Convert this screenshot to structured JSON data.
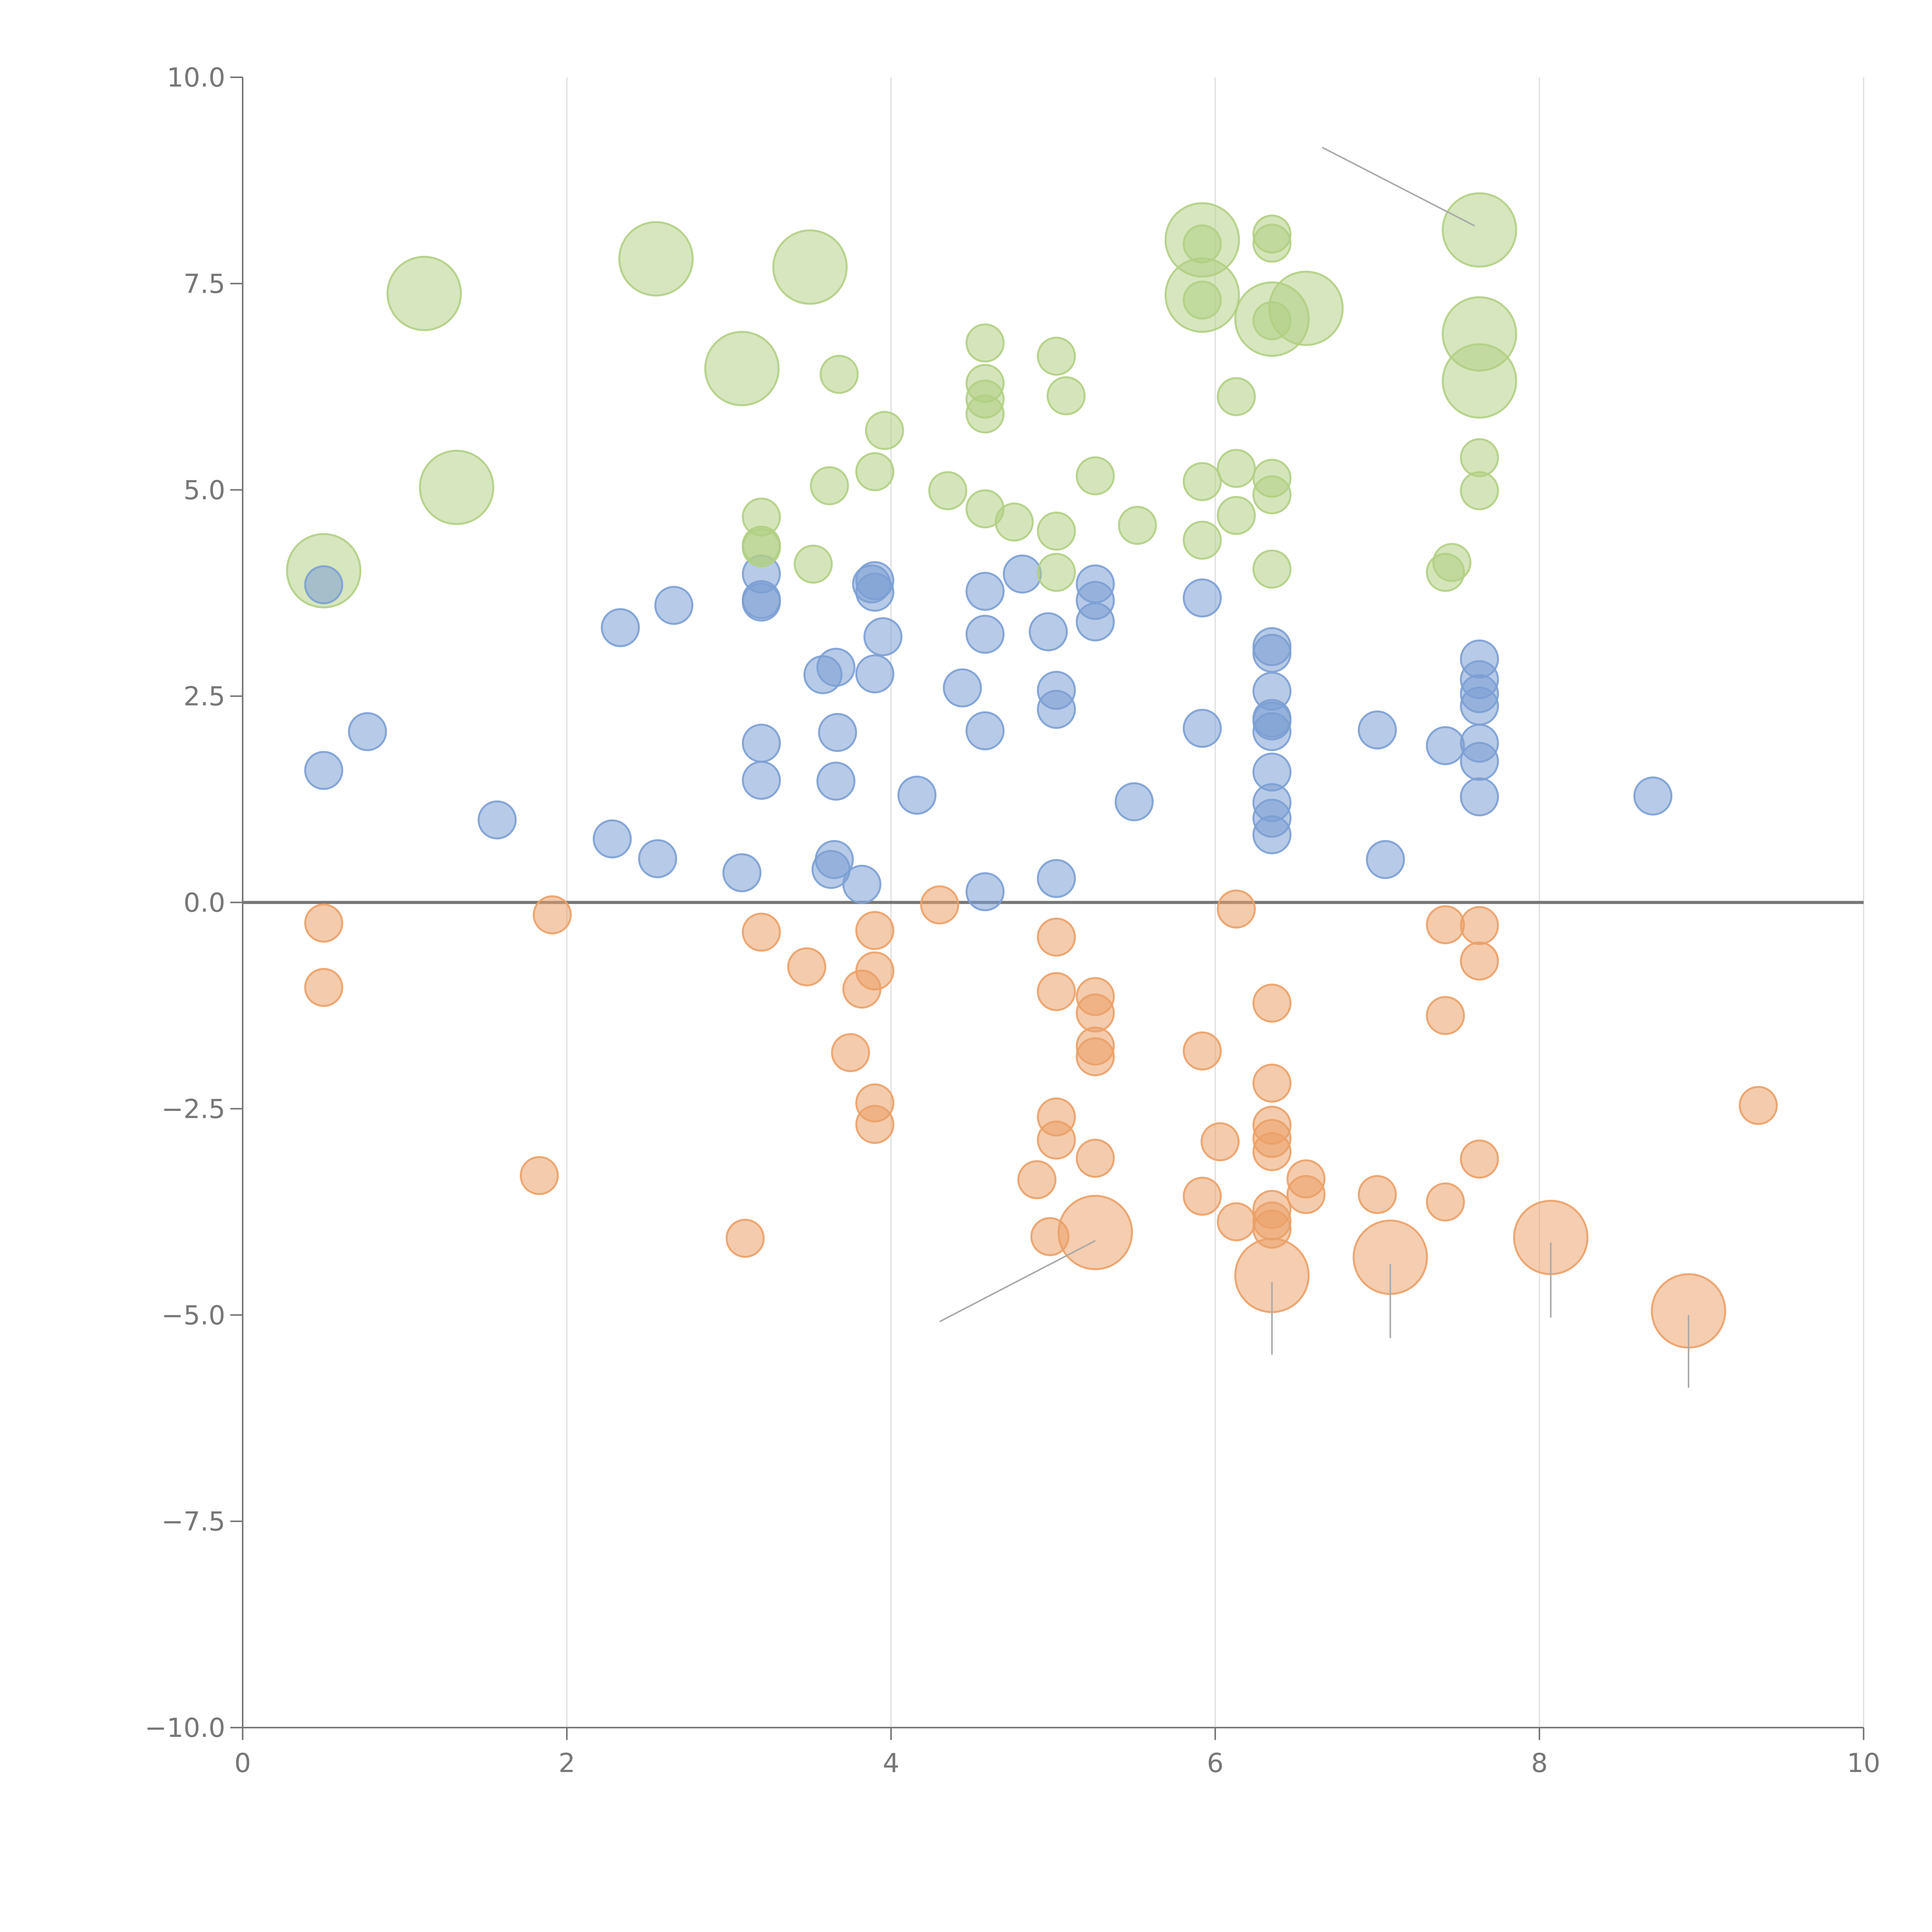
{
  "chart_data": {
    "type": "scatter",
    "title": "",
    "xlabel": "",
    "ylabel": "",
    "xlim": [
      0,
      10
    ],
    "ylim": [
      -10,
      10
    ],
    "x_ticks": [
      0,
      2,
      4,
      6,
      8,
      10
    ],
    "y_ticks": [
      -10,
      -7.5,
      -5,
      -2.5,
      0,
      2.5,
      5,
      7.5,
      10
    ],
    "x_tick_labels": [
      "0",
      "2",
      "4",
      "6",
      "8",
      "10"
    ],
    "y_tick_labels": [
      "−10.0",
      "−7.5",
      "−5.0",
      "−2.5",
      "0.0",
      "2.5",
      "5.0",
      "7.5",
      "10.0"
    ],
    "vertical_gridlines": true,
    "horizontal_gridlines": false,
    "zero_line": true,
    "colors": {
      "blue": "#7b9fd4",
      "orange": "#eba067",
      "green": "#b0cf83"
    },
    "series": [
      {
        "name": "blue",
        "color": "#7b9fd4",
        "points": [
          [
            0.5,
            3.85
          ],
          [
            0.5,
            1.6
          ],
          [
            0.77,
            2.07
          ],
          [
            1.57,
            1.0
          ],
          [
            2.28,
            0.77
          ],
          [
            2.33,
            3.33
          ],
          [
            2.56,
            0.53
          ],
          [
            2.66,
            3.6
          ],
          [
            3.08,
            0.36
          ],
          [
            3.2,
            3.98
          ],
          [
            3.2,
            3.67
          ],
          [
            3.2,
            3.64
          ],
          [
            3.2,
            1.93
          ],
          [
            3.2,
            1.48
          ],
          [
            3.58,
            2.76
          ],
          [
            3.63,
            0.4
          ],
          [
            3.65,
            0.52
          ],
          [
            3.66,
            2.85
          ],
          [
            3.67,
            2.06
          ],
          [
            3.66,
            1.47
          ],
          [
            3.82,
            0.22
          ],
          [
            3.88,
            3.86
          ],
          [
            3.9,
            3.9
          ],
          [
            3.9,
            3.76
          ],
          [
            3.9,
            2.77
          ],
          [
            3.95,
            3.22
          ],
          [
            4.16,
            1.3
          ],
          [
            4.44,
            2.6
          ],
          [
            4.58,
            3.77
          ],
          [
            4.58,
            3.25
          ],
          [
            4.58,
            2.08
          ],
          [
            4.58,
            0.13
          ],
          [
            4.81,
            3.98
          ],
          [
            4.97,
            3.28
          ],
          [
            5.02,
            2.57
          ],
          [
            5.02,
            2.34
          ],
          [
            5.02,
            0.29
          ],
          [
            5.26,
            3.86
          ],
          [
            5.26,
            3.66
          ],
          [
            5.26,
            3.4
          ],
          [
            5.5,
            1.22
          ],
          [
            5.92,
            3.69
          ],
          [
            5.92,
            2.11
          ],
          [
            6.35,
            3.1
          ],
          [
            6.35,
            3.02
          ],
          [
            6.35,
            2.56
          ],
          [
            6.35,
            2.23
          ],
          [
            6.35,
            2.2
          ],
          [
            6.35,
            2.07
          ],
          [
            6.35,
            1.58
          ],
          [
            6.35,
            1.21
          ],
          [
            6.35,
            1.02
          ],
          [
            6.35,
            0.82
          ],
          [
            7.0,
            2.09
          ],
          [
            7.05,
            0.52
          ],
          [
            7.42,
            1.9
          ],
          [
            7.63,
            2.95
          ],
          [
            7.63,
            2.7
          ],
          [
            7.63,
            2.53
          ],
          [
            7.63,
            2.38
          ],
          [
            7.63,
            1.93
          ],
          [
            7.63,
            1.71
          ],
          [
            7.63,
            1.28
          ],
          [
            8.7,
            1.29
          ]
        ]
      },
      {
        "name": "orange",
        "color": "#eba067",
        "points": [
          [
            0.5,
            -0.25
          ],
          [
            0.5,
            -1.03
          ],
          [
            1.83,
            -3.31
          ],
          [
            1.91,
            -0.15
          ],
          [
            3.1,
            -4.07
          ],
          [
            3.2,
            -0.36
          ],
          [
            3.48,
            -0.78
          ],
          [
            3.75,
            -1.82
          ],
          [
            3.82,
            -1.05
          ],
          [
            3.9,
            -0.34
          ],
          [
            3.9,
            -0.83
          ],
          [
            3.9,
            -2.43
          ],
          [
            3.9,
            -2.69
          ],
          [
            4.3,
            -0.03
          ],
          [
            4.9,
            -3.36
          ],
          [
            4.98,
            -4.05
          ],
          [
            5.02,
            -0.42
          ],
          [
            5.02,
            -1.08
          ],
          [
            5.02,
            -2.6
          ],
          [
            5.02,
            -2.88
          ],
          [
            5.26,
            -1.14
          ],
          [
            5.26,
            -1.34
          ],
          [
            5.26,
            -1.74
          ],
          [
            5.26,
            -1.87
          ],
          [
            5.26,
            -3.1
          ],
          [
            5.92,
            -1.8
          ],
          [
            5.92,
            -3.56
          ],
          [
            6.03,
            -2.9
          ],
          [
            6.13,
            -0.08
          ],
          [
            6.13,
            -3.87
          ],
          [
            6.35,
            -1.22
          ],
          [
            6.35,
            -2.19
          ],
          [
            6.35,
            -2.7
          ],
          [
            6.35,
            -2.86
          ],
          [
            6.35,
            -3.02
          ],
          [
            6.35,
            -3.72
          ],
          [
            6.35,
            -3.86
          ],
          [
            6.35,
            -3.96
          ],
          [
            6.56,
            -3.35
          ],
          [
            6.56,
            -3.54
          ],
          [
            7.0,
            -3.54
          ],
          [
            7.42,
            -0.27
          ],
          [
            7.42,
            -1.37
          ],
          [
            7.42,
            -3.63
          ],
          [
            7.63,
            -0.28
          ],
          [
            7.63,
            -0.71
          ],
          [
            7.63,
            -3.11
          ],
          [
            9.35,
            -2.46
          ]
        ]
      },
      {
        "name": "green",
        "color": "#b0cf83",
        "points": [
          [
            3.2,
            4.67
          ],
          [
            3.2,
            4.33
          ],
          [
            3.2,
            4.3
          ],
          [
            3.52,
            4.1
          ],
          [
            3.62,
            5.05
          ],
          [
            3.68,
            6.4
          ],
          [
            3.9,
            5.22
          ],
          [
            3.96,
            5.72
          ],
          [
            4.35,
            4.99
          ],
          [
            4.58,
            6.78
          ],
          [
            4.58,
            6.29
          ],
          [
            4.58,
            6.1
          ],
          [
            4.58,
            5.92
          ],
          [
            4.58,
            4.77
          ],
          [
            4.76,
            4.61
          ],
          [
            5.02,
            6.62
          ],
          [
            5.02,
            4.5
          ],
          [
            5.02,
            4.0
          ],
          [
            5.08,
            6.14
          ],
          [
            5.26,
            5.17
          ],
          [
            5.52,
            4.57
          ],
          [
            5.92,
            7.98
          ],
          [
            5.92,
            7.3
          ],
          [
            5.92,
            5.1
          ],
          [
            5.92,
            4.39
          ],
          [
            6.13,
            6.13
          ],
          [
            6.13,
            5.26
          ],
          [
            6.13,
            4.69
          ],
          [
            6.35,
            8.1
          ],
          [
            6.35,
            7.99
          ],
          [
            6.35,
            7.05
          ],
          [
            6.35,
            5.14
          ],
          [
            6.35,
            4.94
          ],
          [
            6.35,
            4.04
          ],
          [
            7.42,
            4.0
          ],
          [
            7.46,
            4.12
          ],
          [
            7.63,
            5.39
          ],
          [
            7.63,
            4.99
          ]
        ]
      }
    ],
    "large_bubbles": [
      {
        "series": "green",
        "x": 0.5,
        "y": 4.02
      },
      {
        "series": "green",
        "x": 1.12,
        "y": 7.38
      },
      {
        "series": "green",
        "x": 1.32,
        "y": 5.03
      },
      {
        "series": "green",
        "x": 2.55,
        "y": 7.8
      },
      {
        "series": "green",
        "x": 3.08,
        "y": 6.47
      },
      {
        "series": "green",
        "x": 3.5,
        "y": 7.7
      },
      {
        "series": "green",
        "x": 5.92,
        "y": 8.03
      },
      {
        "series": "green",
        "x": 5.92,
        "y": 7.36
      },
      {
        "series": "green",
        "x": 6.35,
        "y": 7.07
      },
      {
        "series": "green",
        "x": 6.56,
        "y": 7.2
      },
      {
        "series": "green",
        "x": 7.63,
        "y": 8.15
      },
      {
        "series": "green",
        "x": 7.63,
        "y": 6.89
      },
      {
        "series": "green",
        "x": 7.63,
        "y": 6.32
      },
      {
        "series": "orange",
        "x": 5.26,
        "y": -4.0
      },
      {
        "series": "orange",
        "x": 6.35,
        "y": -4.52
      },
      {
        "series": "orange",
        "x": 7.08,
        "y": -4.3
      },
      {
        "series": "orange",
        "x": 8.07,
        "y": -4.06
      },
      {
        "series": "orange",
        "x": 8.92,
        "y": -4.95
      }
    ],
    "leader_lines": [
      {
        "from": [
          6.66,
          9.15
        ],
        "to": [
          7.6,
          8.2
        ]
      },
      {
        "from": [
          4.3,
          -5.08
        ],
        "to": [
          5.26,
          -4.1
        ]
      },
      {
        "from": [
          6.35,
          -4.6
        ],
        "to": [
          6.35,
          -5.48
        ]
      },
      {
        "from": [
          7.08,
          -4.38
        ],
        "to": [
          7.08,
          -5.28
        ]
      },
      {
        "from": [
          8.07,
          -4.12
        ],
        "to": [
          8.07,
          -5.03
        ]
      },
      {
        "from": [
          8.92,
          -5.0
        ],
        "to": [
          8.92,
          -5.88
        ]
      }
    ]
  }
}
